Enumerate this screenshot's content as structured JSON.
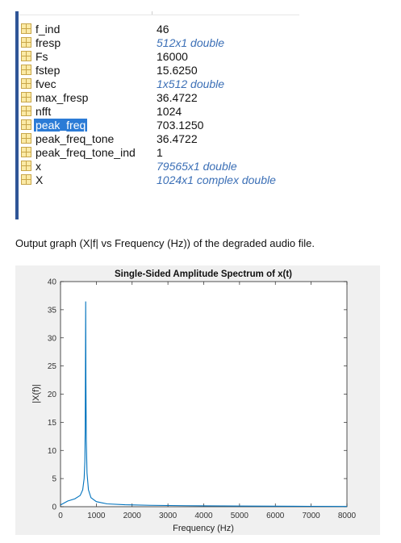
{
  "workspace": {
    "rows": [
      {
        "name": "f_ind",
        "value": "46",
        "italic": false,
        "selected": false
      },
      {
        "name": "fresp",
        "value": "512x1 double",
        "italic": true,
        "selected": false
      },
      {
        "name": "Fs",
        "value": "16000",
        "italic": false,
        "selected": false
      },
      {
        "name": "fstep",
        "value": "15.6250",
        "italic": false,
        "selected": false
      },
      {
        "name": "fvec",
        "value": "1x512 double",
        "italic": true,
        "selected": false
      },
      {
        "name": "max_fresp",
        "value": "36.4722",
        "italic": false,
        "selected": false
      },
      {
        "name": "nfft",
        "value": "1024",
        "italic": false,
        "selected": false
      },
      {
        "name": "peak_freq",
        "value": "703.1250",
        "italic": false,
        "selected": true
      },
      {
        "name": "peak_freq_tone",
        "value": "36.4722",
        "italic": false,
        "selected": false
      },
      {
        "name": "peak_freq_tone_ind",
        "value": "1",
        "italic": false,
        "selected": false
      },
      {
        "name": "x",
        "value": "79565x1 double",
        "italic": true,
        "selected": false
      },
      {
        "name": "X",
        "value": "1024x1 complex double",
        "italic": true,
        "selected": false
      }
    ]
  },
  "caption": "Output graph (X|f| vs Frequency (Hz)) of the degraded audio file.",
  "chart_data": {
    "type": "line",
    "title": "Single-Sided Amplitude Spectrum of x(t)",
    "xlabel": "Frequency (Hz)",
    "ylabel": "|X(f)|",
    "xlim": [
      0,
      8000
    ],
    "ylim": [
      0,
      40
    ],
    "xticks": [
      0,
      1000,
      2000,
      3000,
      4000,
      5000,
      6000,
      7000,
      8000
    ],
    "yticks": [
      0,
      5,
      10,
      15,
      20,
      25,
      30,
      35,
      40
    ],
    "grid": false,
    "line_color": "#0072bd",
    "series": [
      {
        "x": [
          0,
          200,
          400,
          550,
          620,
          660,
          680,
          690,
          697,
          703,
          710,
          720,
          740,
          780,
          850,
          1000,
          1300,
          1800,
          2500,
          3500,
          5000,
          6500,
          8000
        ],
        "y": [
          0.3,
          1.0,
          1.4,
          2.0,
          3.0,
          5.0,
          8.0,
          14.0,
          25.0,
          36.4722,
          22.0,
          12.0,
          6.0,
          3.0,
          1.6,
          0.9,
          0.5,
          0.35,
          0.25,
          0.18,
          0.12,
          0.08,
          0.05
        ]
      }
    ]
  }
}
